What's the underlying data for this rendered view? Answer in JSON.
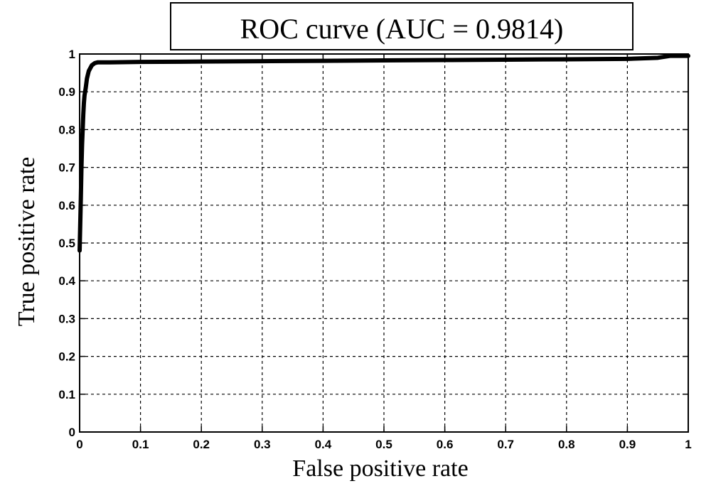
{
  "chart_data": {
    "type": "line",
    "title": "ROC curve (AUC = 0.9814)",
    "xlabel": "False positive rate",
    "ylabel": "True positive rate",
    "xlim": [
      0,
      1
    ],
    "ylim": [
      0,
      1
    ],
    "grid": true,
    "grid_style": "dashed",
    "xticks": [
      0,
      0.1,
      0.2,
      0.3,
      0.4,
      0.5,
      0.6,
      0.7,
      0.8,
      0.9,
      1
    ],
    "xtick_labels": [
      "0",
      "0.1",
      "0.2",
      "0.3",
      "0.4",
      "0.5",
      "0.6",
      "0.7",
      "0.8",
      "0.9",
      "1"
    ],
    "yticks": [
      0,
      0.1,
      0.2,
      0.3,
      0.4,
      0.5,
      0.6,
      0.7,
      0.8,
      0.9,
      1
    ],
    "ytick_labels": [
      "0",
      "0.1",
      "0.2",
      "0.3",
      "0.4",
      "0.5",
      "0.6",
      "0.7",
      "0.8",
      "0.9",
      "1"
    ],
    "line_color": "#000000",
    "series": [
      {
        "x": [
          0,
          0.001,
          0.002,
          0.003,
          0.004,
          0.005,
          0.006,
          0.007,
          0.008,
          0.01,
          0.012,
          0.015,
          0.02,
          0.025,
          0.03,
          0.05,
          0.1,
          0.2,
          0.3,
          0.4,
          0.5,
          0.6,
          0.7,
          0.8,
          0.9,
          0.95,
          0.97,
          1
        ],
        "y": [
          0.48,
          0.55,
          0.62,
          0.7,
          0.76,
          0.8,
          0.84,
          0.87,
          0.89,
          0.91,
          0.935,
          0.955,
          0.97,
          0.976,
          0.978,
          0.978,
          0.979,
          0.98,
          0.981,
          0.982,
          0.983,
          0.984,
          0.985,
          0.986,
          0.987,
          0.99,
          0.995,
          0.995
        ]
      }
    ]
  }
}
